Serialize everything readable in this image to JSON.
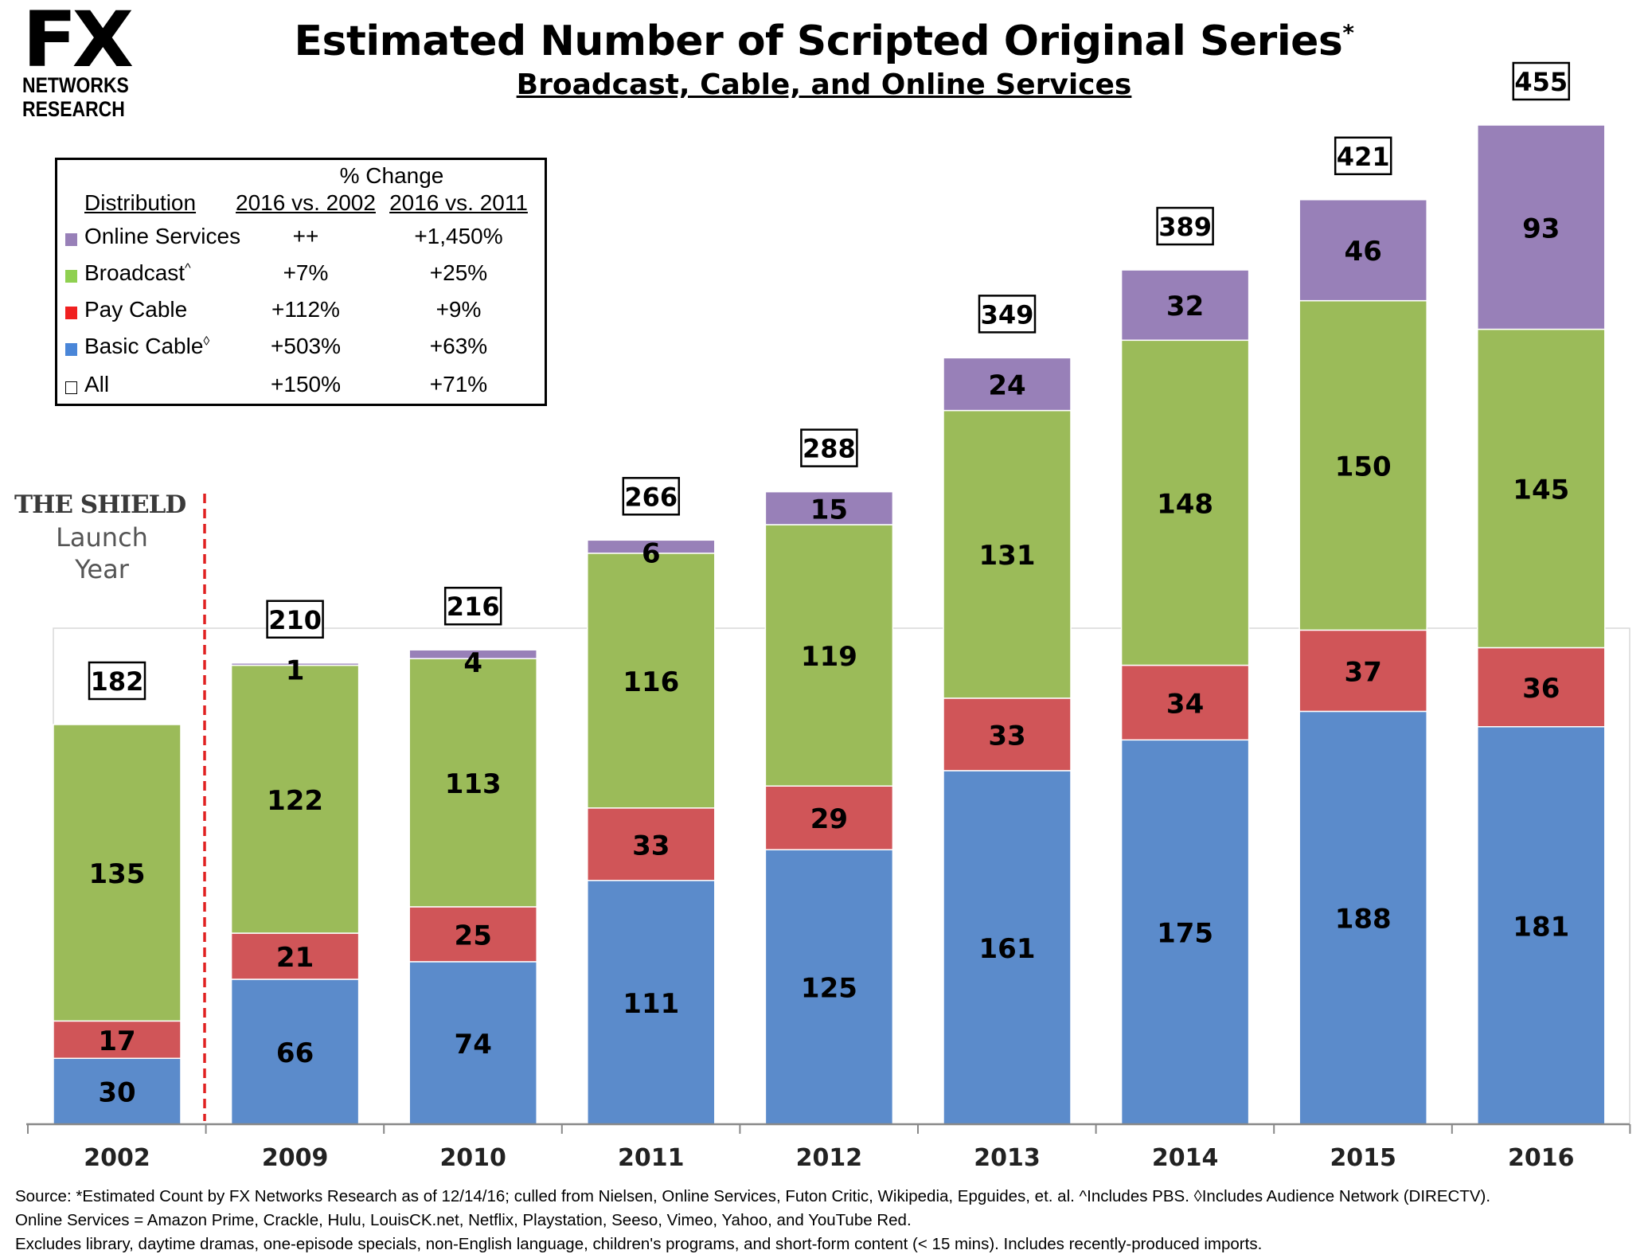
{
  "logo": {
    "mark": "FX",
    "line1": "NETWORKS",
    "line2": "RESEARCH"
  },
  "chart_data": {
    "type": "bar",
    "stacked": true,
    "title": "Estimated Number of Scripted Original Series",
    "title_marker": "*",
    "subtitle": "Broadcast, Cable, and Online Services",
    "categories": [
      "2002",
      "2009",
      "2010",
      "2011",
      "2012",
      "2013",
      "2014",
      "2015",
      "2016"
    ],
    "series": [
      {
        "name": "Basic Cable",
        "color": "#5B8BCB",
        "values": [
          30,
          66,
          74,
          111,
          125,
          161,
          175,
          188,
          181
        ]
      },
      {
        "name": "Pay Cable",
        "color": "#D05558",
        "values": [
          17,
          21,
          25,
          33,
          29,
          33,
          34,
          37,
          36
        ]
      },
      {
        "name": "Broadcast",
        "color": "#9BBB59",
        "values": [
          135,
          122,
          113,
          116,
          119,
          131,
          148,
          150,
          145
        ]
      },
      {
        "name": "Online Services",
        "color": "#9880B8",
        "values": [
          0,
          1,
          4,
          6,
          15,
          24,
          32,
          46,
          93
        ]
      }
    ],
    "totals": [
      182,
      210,
      216,
      266,
      288,
      349,
      389,
      421,
      455
    ],
    "ylim": [
      0,
      455
    ],
    "grid": false,
    "annotation": {
      "line1": "THE SHIELD",
      "line2": "Launch",
      "line3": "Year",
      "marker_between": [
        "2002",
        "2009"
      ],
      "marker_color": "#E02020"
    }
  },
  "legend": {
    "pct_change_label": "% Change",
    "headers": [
      "Distribution",
      "2016 vs. 2002",
      "2016 vs. 2011"
    ],
    "rows": [
      {
        "label": "Online Services",
        "mark": "",
        "color": "#9880B8",
        "vs2002": "++",
        "vs2011": "+1,450%"
      },
      {
        "label": "Broadcast",
        "mark": "^",
        "color": "#8FD050",
        "vs2002": "+7%",
        "vs2011": "+25%"
      },
      {
        "label": "Pay Cable",
        "mark": "",
        "color": "#F02020",
        "vs2002": "+112%",
        "vs2011": "+9%"
      },
      {
        "label": "Basic Cable",
        "mark": "◊",
        "color": "#4A86D8",
        "vs2002": "+503%",
        "vs2011": "+63%"
      },
      {
        "label": "All",
        "mark": "",
        "color": "#FFFFFF",
        "vs2002": "+150%",
        "vs2011": "+71%"
      }
    ]
  },
  "footer": {
    "line1": "Source:  *Estimated Count by FX Networks Research as of 12/14/16; culled from Nielsen, Online Services, Futon Critic, Wikipedia, Epguides, et. al.  ^Includes PBS.  ◊Includes Audience Network (DIRECTV).",
    "line2": "Online Services = Amazon Prime, Crackle, Hulu, LouisCK.net, Netflix, Playstation, Seeso, Vimeo, Yahoo, and YouTube Red.",
    "line3": "Excludes library, daytime dramas, one-episode specials, non-English language, children's programs, and short-form content (< 15 mins).  Includes recently-produced imports."
  }
}
